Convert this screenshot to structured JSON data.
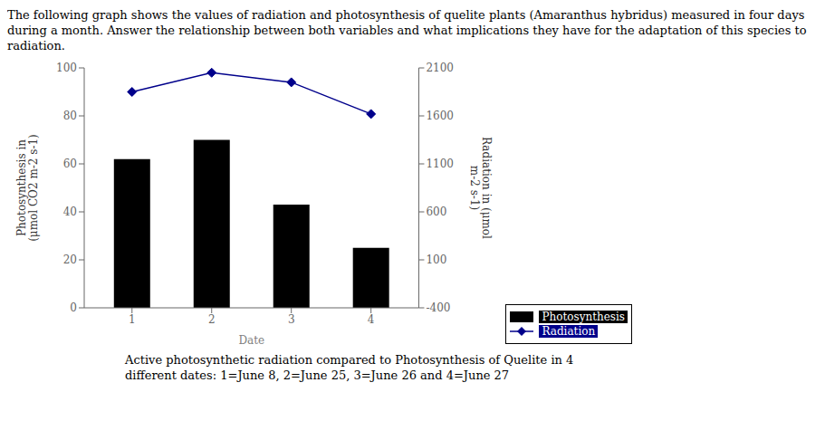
{
  "chart_data": {
    "type": "bar",
    "title": "The following graph shows the values of radiation and photosynthesis of quelite plants (Amaranthus hybridus) measured in four days during a month. Answer the relationship between both variables and what implications they have for the adaptation of this species to radiation.",
    "x": [
      1,
      2,
      3,
      4
    ],
    "xlabel": "Date",
    "ylabel": "Photosynthesis in\n(μmol CO2 m-2 s-1)",
    "y2label": "Radiation in (μmol\nm-2 s-1)",
    "xlim": [
      0.4,
      4.6
    ],
    "xticks": [
      1,
      2,
      3,
      4
    ],
    "ylim": [
      0,
      100
    ],
    "yticks": [
      0,
      20,
      40,
      60,
      80,
      100
    ],
    "y2lim": [
      -400,
      2100
    ],
    "y2ticks": [
      -400,
      100,
      600,
      1100,
      1600,
      2100
    ],
    "series": [
      {
        "name": "Photosynthesis",
        "type": "bar",
        "color": "#000000",
        "values": [
          62,
          70,
          43,
          25
        ]
      },
      {
        "name": "Radiation",
        "type": "line",
        "axis": "y2",
        "color": "#00008B",
        "marker": "diamond",
        "values": [
          1850,
          2050,
          1950,
          1620
        ]
      }
    ],
    "legend": "lower right",
    "grid": false,
    "annotations": [
      "Active photosynthetic radiation compared to Photosynthesis of Quelite in 4",
      "different dates: 1=June 8, 2=June 25, 3=June 26 and 4=June 27"
    ]
  }
}
